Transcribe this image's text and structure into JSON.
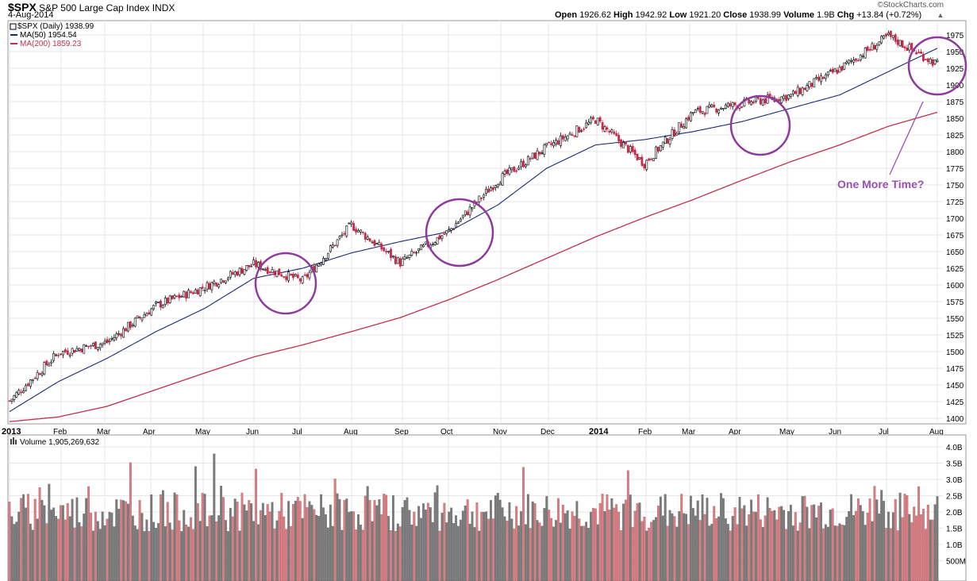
{
  "header": {
    "symbol": "$SPX",
    "name": "S&P 500 Large Cap Index",
    "exchange": "INDX",
    "date": "4-Aug-2014",
    "open_label": "Open",
    "open": "1926.62",
    "high_label": "High",
    "high": "1942.92",
    "low_label": "Low",
    "low": "1921.20",
    "close_label": "Close",
    "close": "1938.99",
    "volume_label": "Volume",
    "volume": "1.9B",
    "chg_label": "Chg",
    "chg": "+13.84 (+0.72%)",
    "brand": "©StockCharts.com"
  },
  "legend": {
    "price": "$SPX (Daily) 1938.99",
    "ma50": "MA(50) 1954.54",
    "ma200": "MA(200) 1859.23"
  },
  "volume_legend": "Volume 1,905,269,632",
  "annotation": "One More Time?",
  "colors": {
    "up": "#000000",
    "down": "#c8284a",
    "ma50": "#1c2a78",
    "ma200": "#c0304a",
    "circle": "#8e3a9c",
    "annotation": "#9b4fb0",
    "vol_up": "#7a7a7a",
    "vol_down": "#e07a80",
    "grid": "#e6e6e6"
  },
  "chart_data": [
    {
      "type": "line",
      "title": "$SPX (Daily) 1938.99",
      "ylim": [
        1387,
        1995
      ],
      "y_ticks": [
        1400,
        1425,
        1450,
        1475,
        1500,
        1525,
        1550,
        1575,
        1600,
        1625,
        1650,
        1675,
        1700,
        1725,
        1750,
        1775,
        1800,
        1825,
        1850,
        1875,
        1900,
        1925,
        1950,
        1975
      ],
      "x_tick_labels": [
        {
          "label": "2013",
          "bold": true
        },
        {
          "label": "Feb"
        },
        {
          "label": "Mar"
        },
        {
          "label": "Apr"
        },
        {
          "label": "May"
        },
        {
          "label": "Jun"
        },
        {
          "label": "Jul"
        },
        {
          "label": "Aug"
        },
        {
          "label": "Sep"
        },
        {
          "label": "Oct"
        },
        {
          "label": "Nov"
        },
        {
          "label": "Dec"
        },
        {
          "label": "2014",
          "bold": true
        },
        {
          "label": "Feb"
        },
        {
          "label": "Mar"
        },
        {
          "label": "Apr"
        },
        {
          "label": "May"
        },
        {
          "label": "Jun"
        },
        {
          "label": "Jul"
        },
        {
          "label": "Aug"
        }
      ],
      "x": [
        "2013-01",
        "2013-02",
        "2013-03",
        "2013-04",
        "2013-05",
        "2013-06",
        "2013-07",
        "2013-08",
        "2013-09",
        "2013-10",
        "2013-11",
        "2013-12",
        "2014-01",
        "2014-02",
        "2014-03",
        "2014-04",
        "2014-05",
        "2014-06",
        "2014-07",
        "2014-08"
      ],
      "series": [
        {
          "name": "$SPX (Daily) 1938.99",
          "values": [
            1426,
            1498,
            1514,
            1569,
            1597,
            1631,
            1606,
            1690,
            1633,
            1681,
            1757,
            1806,
            1848,
            1782,
            1859,
            1872,
            1884,
            1924,
            1973,
            1931
          ]
        },
        {
          "name": "MA(50) 1954.54",
          "values": [
            1410,
            1455,
            1490,
            1530,
            1565,
            1610,
            1625,
            1648,
            1665,
            1680,
            1720,
            1775,
            1810,
            1818,
            1830,
            1845,
            1865,
            1885,
            1920,
            1955
          ]
        },
        {
          "name": "MA(200) 1859.23",
          "values": [
            1395,
            1402,
            1418,
            1443,
            1468,
            1492,
            1510,
            1530,
            1551,
            1578,
            1608,
            1640,
            1672,
            1701,
            1728,
            1757,
            1785,
            1810,
            1838,
            1859
          ]
        }
      ],
      "annotations": [
        "One More Time?"
      ]
    },
    {
      "type": "bar",
      "title": "Volume 1,905,269,632",
      "y_ticks": [
        "500M",
        "1.0B",
        "1.5B",
        "2.0B",
        "2.5B",
        "3.0B",
        "3.5B",
        "4.0B"
      ],
      "ylim": [
        0,
        4200000000
      ]
    }
  ]
}
